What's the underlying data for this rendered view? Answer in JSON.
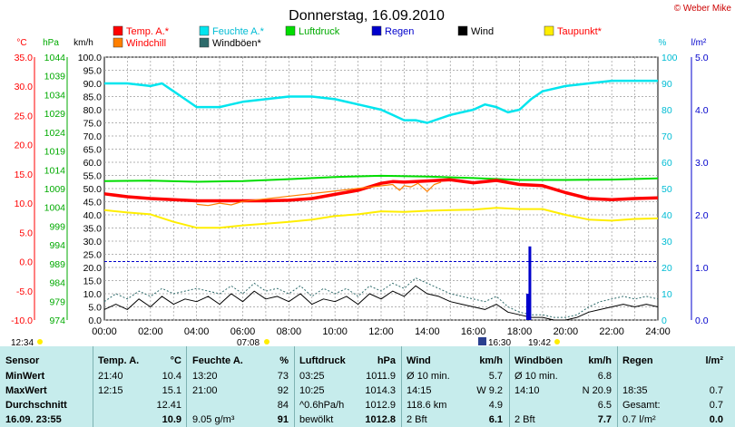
{
  "page": {
    "date_title": "Donnerstag, 16.09.2010",
    "credit": "© Weber Mike"
  },
  "colors": {
    "temp": "#ff0000",
    "humidity": "#00e5ee",
    "pressure": "#00dd00",
    "rain": "#0000cc",
    "wind": "#000000",
    "dewpoint": "#ffee00",
    "windchill": "#ff7f00",
    "gust": "#2e6b6b"
  },
  "legend": [
    {
      "label": "Temp. A.*",
      "color": "#ff0000",
      "text_color": "#ff0000"
    },
    {
      "label": "Feuchte A.*",
      "color": "#00e5ee",
      "text_color": "#00bcd4"
    },
    {
      "label": "Luftdruck",
      "color": "#00dd00",
      "text_color": "#00aa00"
    },
    {
      "label": "Regen",
      "color": "#0000cc",
      "text_color": "#0000cc"
    },
    {
      "label": "Wind",
      "color": "#000000",
      "text_color": "#000000"
    },
    {
      "label": "Taupunkt*",
      "color": "#ffee00",
      "text_color": "#ff0000"
    },
    {
      "label": "Windchill",
      "color": "#ff7f00",
      "text_color": "#ff0000"
    },
    {
      "label": "Windböen*",
      "color": "#2e6b6b",
      "text_color": "#000000"
    }
  ],
  "axes": {
    "temp_unit": "°C",
    "pressure_unit": "hPa",
    "wind_unit": "km/h",
    "hum_unit": "%",
    "rain_unit": "l/m²",
    "temp_ticks": [
      "35.0",
      "30.0",
      "25.0",
      "20.0",
      "15.0",
      "10.0",
      "5.0",
      "0.0",
      "-5.0",
      "-10.0"
    ],
    "pressure_ticks": [
      "1044",
      "1039",
      "1034",
      "1029",
      "1024",
      "1019",
      "1014",
      "1009",
      "1004",
      "999",
      "994",
      "989",
      "984",
      "979",
      "974"
    ],
    "wind_ticks": [
      "100.0",
      "95.0",
      "90.0",
      "85.0",
      "80.0",
      "75.0",
      "70.0",
      "65.0",
      "60.0",
      "55.0",
      "50.0",
      "45.0",
      "40.0",
      "35.0",
      "30.0",
      "25.0",
      "20.0",
      "15.0",
      "10.0",
      "5.0",
      "0.0"
    ],
    "hum_ticks": [
      "100",
      "90",
      "80",
      "70",
      "60",
      "50",
      "40",
      "30",
      "20",
      "10",
      "0"
    ],
    "rain_ticks": [
      "5.0",
      "4.0",
      "3.0",
      "2.0",
      "1.0",
      "0.0"
    ],
    "time_ticks": [
      "00:00",
      "02:00",
      "04:00",
      "06:00",
      "08:00",
      "10:00",
      "12:00",
      "14:00",
      "16:00",
      "18:00",
      "20:00",
      "22:00",
      "24:00"
    ],
    "sunrise": "07:08",
    "sunset": "19:42",
    "day_length": "12:34",
    "marker_time": "16:30"
  },
  "chart_data": {
    "type": "line",
    "x_unit": "hour",
    "xlim": [
      0,
      24
    ],
    "temp_ylim": [
      -10,
      35
    ],
    "pressure_ylim": [
      974,
      1044
    ],
    "wind_ylim": [
      0,
      100
    ],
    "hum_ylim": [
      0,
      100
    ],
    "rain_ylim": [
      0,
      5
    ],
    "series": [
      {
        "name": "Temp. A.*",
        "axis": "temp",
        "x": [
          0,
          1,
          2,
          3,
          4,
          5,
          6,
          7,
          8,
          9,
          10,
          11,
          12,
          12.5,
          13,
          14,
          15,
          16,
          17,
          18,
          19,
          20,
          21,
          22,
          23,
          24
        ],
        "values": [
          11.6,
          11.1,
          10.8,
          10.6,
          10.4,
          10.4,
          10.4,
          10.4,
          10.5,
          10.8,
          11.5,
          12.2,
          13.4,
          13.7,
          13.6,
          13.8,
          14.0,
          13.5,
          13.9,
          13.2,
          13.0,
          11.8,
          10.8,
          10.6,
          10.8,
          10.9
        ]
      },
      {
        "name": "Windchill",
        "axis": "temp",
        "x": [
          4,
          4.5,
          5,
          5.5,
          6,
          12.5,
          12.8,
          13,
          13.3,
          13.6,
          14,
          14.3,
          14.6
        ],
        "values": [
          9.8,
          9.6,
          10.0,
          9.7,
          10.3,
          13.2,
          12.2,
          13.0,
          12.8,
          13.4,
          12.0,
          13.2,
          13.6
        ]
      },
      {
        "name": "Feuchte A.*",
        "axis": "hum",
        "x": [
          0,
          1,
          2,
          2.5,
          3,
          3.5,
          4,
          5,
          6,
          7,
          8,
          9,
          10,
          11,
          12,
          12.5,
          13,
          13.5,
          14,
          15,
          15.5,
          16,
          16.5,
          17,
          17.5,
          18,
          18.5,
          19,
          20,
          21,
          22,
          23,
          24
        ],
        "values": [
          90,
          90,
          89,
          90,
          87,
          84,
          81,
          81,
          83,
          84,
          85,
          85,
          84,
          82,
          80,
          78,
          76,
          76,
          75,
          78,
          79,
          80,
          82,
          81,
          79,
          80,
          84,
          87,
          89,
          90,
          91,
          91,
          91
        ]
      },
      {
        "name": "Luftdruck",
        "axis": "pressure",
        "x": [
          0,
          2,
          4,
          6,
          8,
          10,
          12,
          14,
          16,
          18,
          20,
          22,
          24
        ],
        "values": [
          1011.0,
          1011.1,
          1010.8,
          1011.0,
          1011.5,
          1012.1,
          1012.4,
          1012.2,
          1011.8,
          1011.3,
          1011.3,
          1011.4,
          1011.7
        ]
      },
      {
        "name": "Taupunkt*",
        "axis": "temp",
        "x": [
          0,
          1,
          2,
          3,
          4,
          5,
          6,
          7,
          8,
          9,
          10,
          11,
          12,
          13,
          14,
          15,
          16,
          17,
          18,
          19,
          20,
          21,
          22,
          23,
          24
        ],
        "values": [
          8.8,
          8.4,
          8.1,
          6.8,
          5.8,
          5.8,
          6.2,
          6.5,
          6.8,
          7.2,
          7.8,
          8.1,
          8.6,
          8.5,
          8.7,
          8.8,
          8.9,
          9.2,
          9.0,
          9.0,
          8.0,
          7.2,
          7.0,
          7.3,
          7.4
        ]
      },
      {
        "name": "Wind",
        "axis": "wind",
        "x": [
          0,
          0.5,
          1,
          1.5,
          2,
          2.5,
          3,
          3.5,
          4,
          4.5,
          5,
          5.5,
          6,
          6.5,
          7,
          7.5,
          8,
          8.5,
          9,
          9.5,
          10,
          10.5,
          11,
          11.5,
          12,
          12.5,
          13,
          13.5,
          14,
          14.5,
          15,
          15.5,
          16,
          16.5,
          17,
          17.5,
          18,
          18.5,
          19,
          19.5,
          20,
          20.5,
          21,
          21.5,
          22,
          22.5,
          23,
          23.5,
          24
        ],
        "values": [
          4,
          6,
          4,
          8,
          5,
          9,
          6,
          8,
          7,
          9,
          6,
          10,
          7,
          11,
          8,
          9,
          7,
          10,
          6,
          8,
          7,
          9,
          6,
          10,
          8,
          11,
          9,
          13,
          10,
          9,
          7,
          6,
          5,
          4,
          6,
          3,
          2,
          1,
          1,
          0,
          0,
          1,
          3,
          4,
          5,
          6,
          5,
          6,
          5
        ]
      },
      {
        "name": "Windböen*",
        "axis": "wind",
        "x": [
          0,
          0.5,
          1,
          1.5,
          2,
          2.5,
          3,
          3.5,
          4,
          4.5,
          5,
          5.5,
          6,
          6.5,
          7,
          7.5,
          8,
          8.5,
          9,
          9.5,
          10,
          10.5,
          11,
          11.5,
          12,
          12.5,
          13,
          13.5,
          14,
          14.5,
          15,
          15.5,
          16,
          16.5,
          17,
          17.5,
          18,
          18.5,
          19,
          19.5,
          20,
          20.5,
          21,
          21.5,
          22,
          22.5,
          23,
          23.5,
          24
        ],
        "values": [
          7,
          10,
          8,
          11,
          9,
          12,
          10,
          11,
          12,
          11,
          10,
          13,
          10,
          14,
          11,
          12,
          10,
          13,
          9,
          12,
          10,
          12,
          9,
          13,
          11,
          14,
          12,
          16,
          14,
          12,
          10,
          9,
          8,
          7,
          9,
          5,
          3,
          2,
          2,
          1,
          1,
          2,
          5,
          7,
          8,
          9,
          8,
          9,
          8
        ]
      },
      {
        "name": "Regen",
        "axis": "rain",
        "x": [
          18.35,
          18.45
        ],
        "values": [
          0.5,
          1.4
        ]
      }
    ]
  },
  "table": {
    "headers": {
      "sensor": "Sensor",
      "temp": "Temp. A.",
      "temp_unit": "°C",
      "hum": "Feuchte A.",
      "hum_unit": "%",
      "press": "Luftdruck",
      "press_unit": "hPa",
      "wind": "Wind",
      "wind_unit": "km/h",
      "gust": "Windböen",
      "gust_unit": "km/h",
      "rain": "Regen",
      "rain_unit": "l/m²"
    },
    "row_labels": [
      "MinWert",
      "MaxWert",
      "Durchschnitt",
      "16.09. 23:55"
    ],
    "temp": [
      [
        "21:40",
        "10.4"
      ],
      [
        "12:15",
        "15.1"
      ],
      [
        "",
        "12.41"
      ],
      [
        "",
        "10.9"
      ]
    ],
    "hum": [
      [
        "13:20",
        "73"
      ],
      [
        "21:00",
        "92"
      ],
      [
        "",
        "84"
      ],
      [
        "9.05 g/m³",
        "91"
      ]
    ],
    "press": [
      [
        "03:25",
        "1011.9"
      ],
      [
        "10:25",
        "1014.3"
      ],
      [
        "^0.6hPa/h",
        "1012.9"
      ],
      [
        "bewölkt",
        "1012.8"
      ]
    ],
    "wind": [
      [
        "Ø 10 min.",
        "5.7"
      ],
      [
        "14:15",
        "W 9.2"
      ],
      [
        "118.6 km",
        "4.9"
      ],
      [
        "2 Bft",
        "6.1"
      ]
    ],
    "gust": [
      [
        "Ø 10 min.",
        "6.8"
      ],
      [
        "14:10",
        "N 20.9"
      ],
      [
        "",
        "6.5"
      ],
      [
        "2 Bft",
        "7.7"
      ]
    ],
    "rain": [
      [
        "",
        ""
      ],
      [
        "18:35",
        "0.7"
      ],
      [
        "Gesamt:",
        "0.7"
      ],
      [
        "0.7 l/m²",
        "0.0"
      ]
    ]
  }
}
